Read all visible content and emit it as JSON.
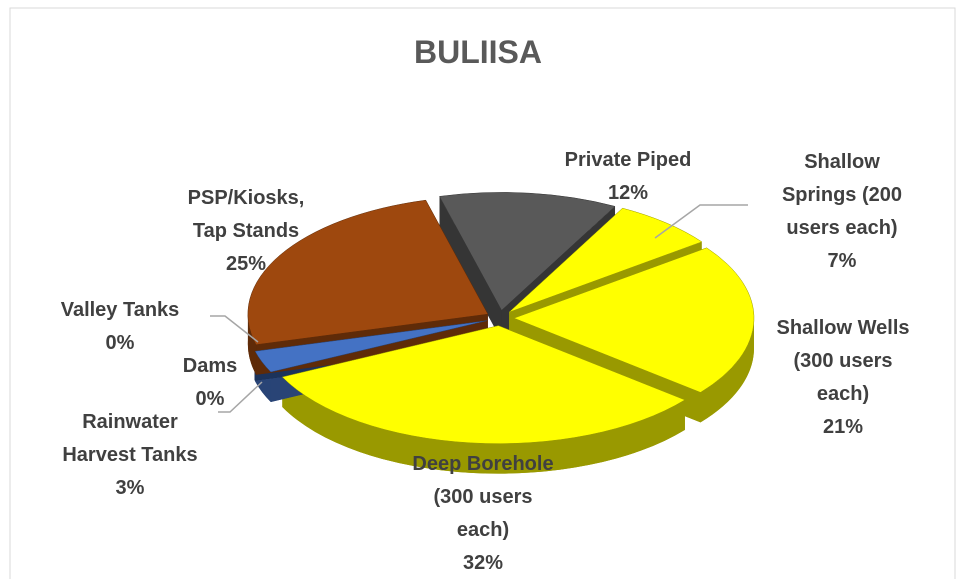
{
  "chart_data": {
    "type": "pie",
    "title": "BULIISA",
    "categories": [
      "Private Piped",
      "Shallow Springs (200 users each)",
      "Shallow Wells (300 users each)",
      "Deep Borehole (300 users each)",
      "Rainwater Harvest Tanks",
      "Dams",
      "Valley Tanks",
      "PSP/Kiosks, Tap Stands"
    ],
    "values": [
      12,
      7,
      21,
      32,
      3,
      0,
      0,
      25
    ],
    "value_labels": [
      "12%",
      "7%",
      "21%",
      "32%",
      "3%",
      "0%",
      "0%",
      "25%"
    ],
    "colors": [
      "#595959",
      "#ffff00",
      "#ffff00",
      "#ffff00",
      "#4472c4",
      "#203864",
      "#2f5597",
      "#9e480e"
    ]
  }
}
